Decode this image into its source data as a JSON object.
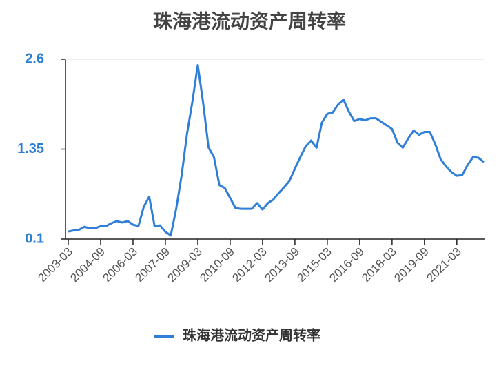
{
  "chart_data": {
    "type": "line",
    "title": "珠海港流动资产周转率",
    "categories": [
      "2003-03",
      null,
      null,
      null,
      null,
      null,
      "2004-09",
      null,
      null,
      null,
      null,
      null,
      "2006-03",
      null,
      null,
      null,
      null,
      null,
      "2007-09",
      null,
      null,
      null,
      null,
      null,
      "2009-03",
      null,
      null,
      null,
      null,
      null,
      "2010-09",
      null,
      null,
      null,
      null,
      null,
      "2012-03",
      null,
      null,
      null,
      null,
      null,
      "2013-09",
      null,
      null,
      null,
      null,
      null,
      "2015-03",
      null,
      null,
      null,
      null,
      null,
      "2016-09",
      null,
      null,
      null,
      null,
      null,
      "2018-03",
      null,
      null,
      null,
      null,
      null,
      "2019-09",
      null,
      null,
      null,
      null,
      null,
      "2021-03",
      null,
      null,
      null,
      null,
      null
    ],
    "series": [
      {
        "name": "珠海港流动资产周转率",
        "color": "#2f7ed8",
        "values": [
          0.205,
          0.22,
          0.23,
          0.27,
          0.25,
          0.25,
          0.28,
          0.28,
          0.32,
          0.35,
          0.33,
          0.35,
          0.3,
          0.28,
          0.55,
          0.69,
          0.28,
          0.29,
          0.2,
          0.15,
          0.52,
          0.98,
          1.56,
          2.01,
          2.52,
          1.99,
          1.37,
          1.24,
          0.85,
          0.81,
          0.67,
          0.53,
          0.52,
          0.52,
          0.52,
          0.6,
          0.51,
          0.6,
          0.65,
          0.74,
          0.82,
          0.91,
          1.08,
          1.24,
          1.39,
          1.47,
          1.37,
          1.72,
          1.84,
          1.86,
          1.97,
          2.04,
          1.87,
          1.74,
          1.77,
          1.75,
          1.78,
          1.78,
          1.73,
          1.68,
          1.63,
          1.44,
          1.37,
          1.5,
          1.61,
          1.55,
          1.59,
          1.59,
          1.42,
          1.21,
          1.11,
          1.03,
          0.98,
          0.99,
          1.13,
          1.24,
          1.23,
          1.17
        ]
      }
    ],
    "ylim": [
      0.1,
      2.6
    ],
    "yticks": [
      0.1,
      1.35,
      2.6
    ],
    "grid": true
  }
}
